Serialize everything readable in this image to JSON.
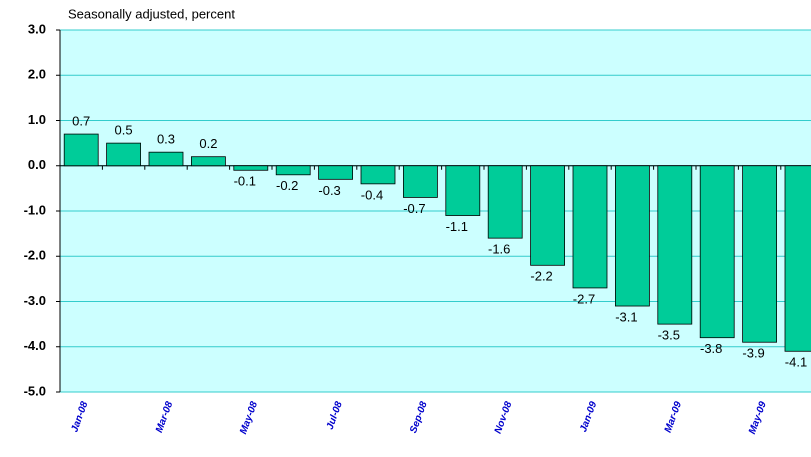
{
  "chart_data": {
    "type": "bar",
    "subtitle": "Seasonally adjusted, percent",
    "categories": [
      "Jan-08",
      null,
      "Mar-08",
      null,
      "May-08",
      null,
      "Jul-08",
      null,
      "Sep-08",
      null,
      "Nov-08",
      null,
      "Jan-09",
      null,
      "Mar-09",
      null,
      "May-09",
      null
    ],
    "values": [
      0.7,
      0.5,
      0.3,
      0.2,
      -0.1,
      -0.2,
      -0.3,
      -0.4,
      -0.7,
      -1.1,
      -1.6,
      -2.2,
      -2.7,
      -3.1,
      -3.5,
      -3.8,
      -3.9,
      -4.1
    ],
    "color": "#00cc99",
    "ylim": [
      -5,
      3
    ],
    "yticks": [
      {
        "value": -5,
        "label": "-5.0"
      },
      {
        "value": -4,
        "label": "-4.0"
      },
      {
        "value": -3,
        "label": "-3.0"
      },
      {
        "value": -2,
        "label": "-2.0"
      },
      {
        "value": -1,
        "label": "-1.0"
      },
      {
        "value": 0,
        "label": "0.0"
      },
      {
        "value": 1,
        "label": "1.0"
      },
      {
        "value": 2,
        "label": "2.0"
      },
      {
        "value": 3,
        "label": "3.0"
      }
    ],
    "grid": true
  }
}
